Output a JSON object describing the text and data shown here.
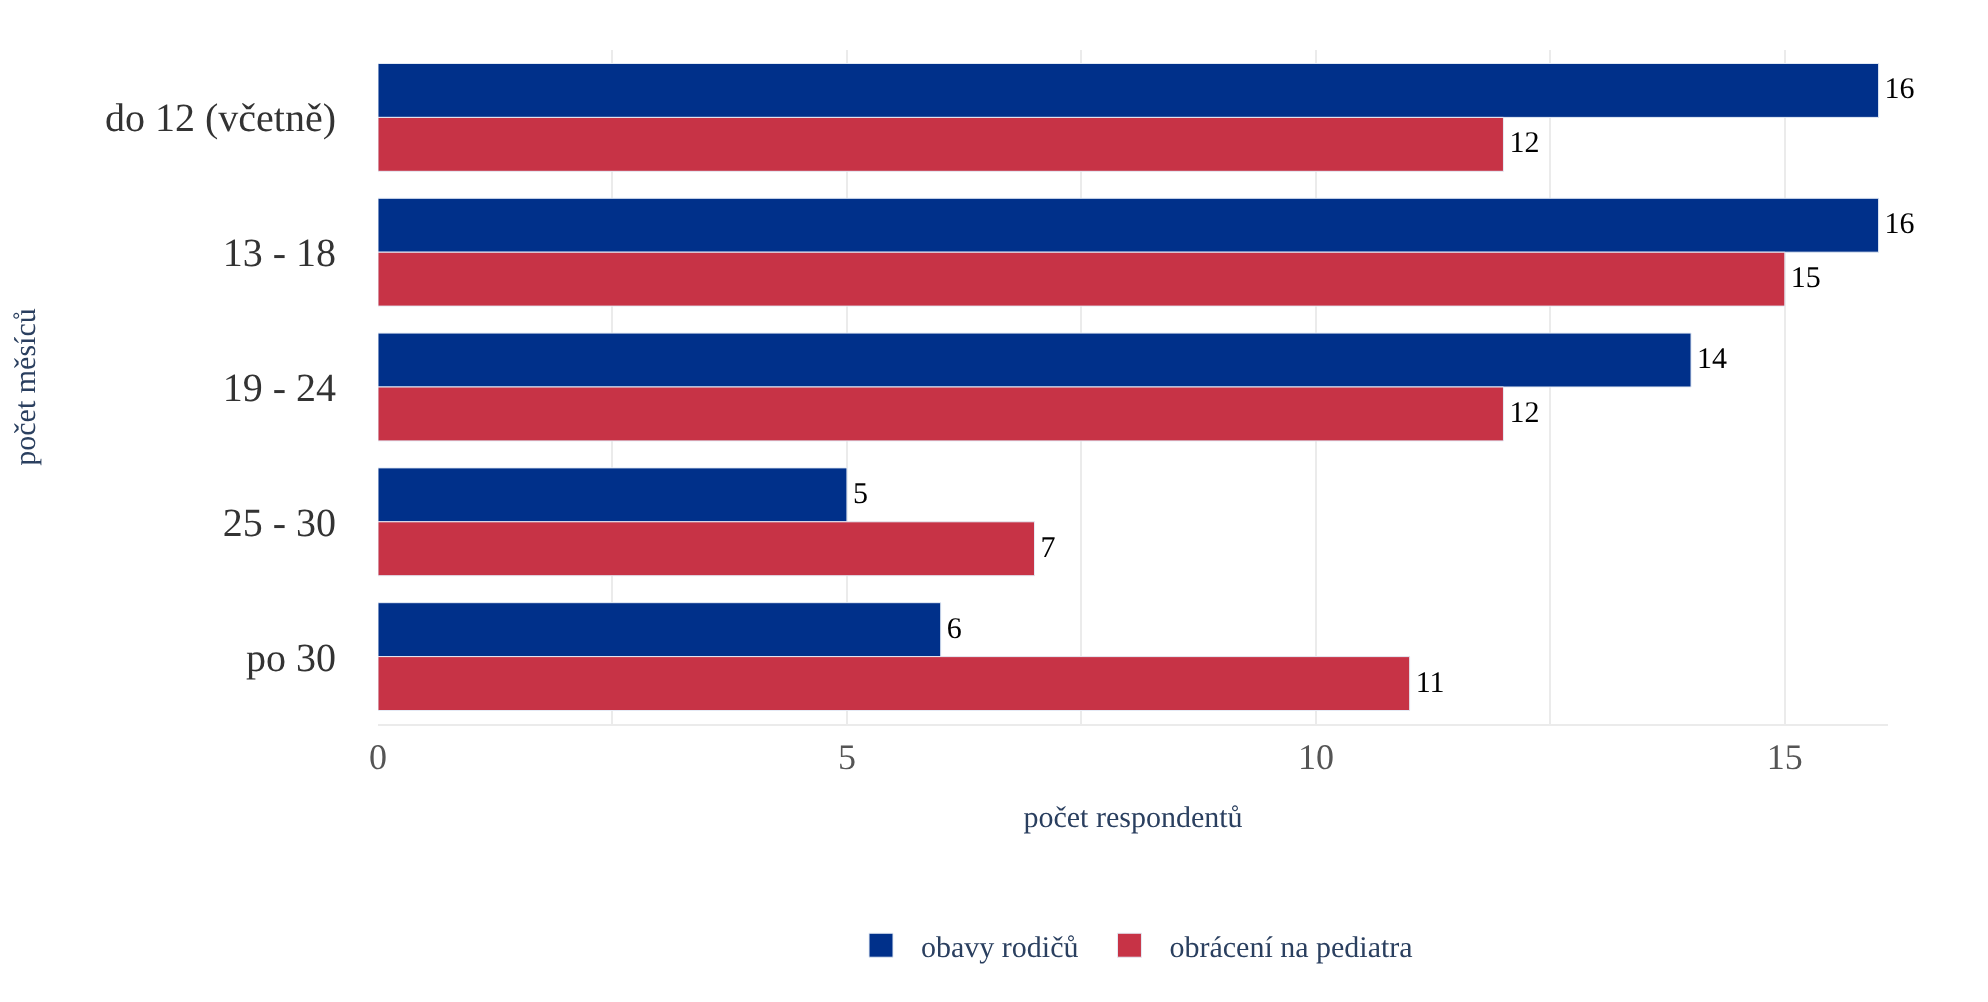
{
  "chart_data": {
    "type": "bar",
    "orientation": "horizontal",
    "xlabel": "počet respondentů",
    "ylabel": "počet měsíců",
    "categories": [
      "do 12 (včetně)",
      "13 - 18",
      "19 - 24",
      "25 - 30",
      "po 30"
    ],
    "series": [
      {
        "name": "obavy rodičů",
        "color": "#00308a",
        "values": [
          16,
          16,
          14,
          5,
          6
        ]
      },
      {
        "name": "obrácení na pediatra",
        "color": "#c73346",
        "values": [
          12,
          15,
          12,
          7,
          11
        ]
      }
    ],
    "xlim": [
      0,
      16.1
    ],
    "xticks": [
      0,
      {
        "value": 2.5,
        "label": null
      },
      5,
      {
        "value": 7.5,
        "label": null
      },
      10,
      {
        "value": 12.5,
        "label": null
      },
      15
    ],
    "grid": "x",
    "legend": "bottom",
    "data_labels": true
  }
}
